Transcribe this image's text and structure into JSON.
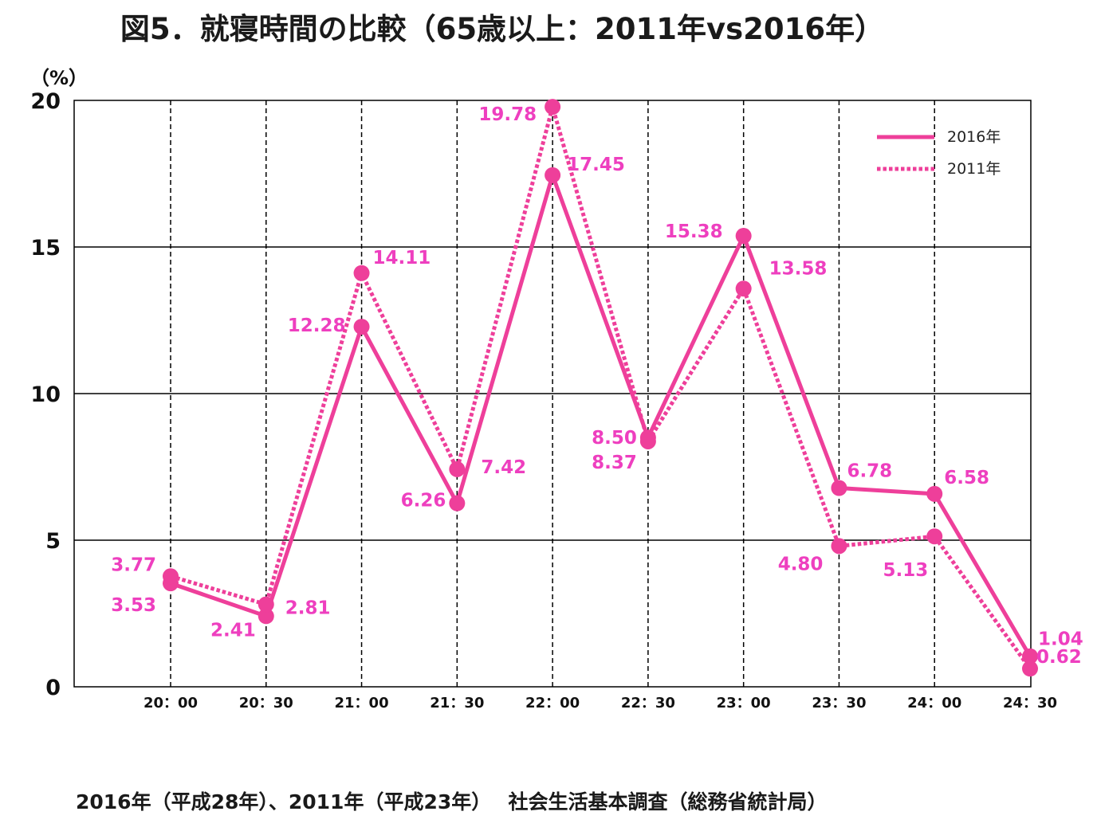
{
  "title": "図5．就寝時間の比較（65歳以上：2011年vs2016年）",
  "source": "2016年（平成28年）、2011年（平成23年）　 社会生活基本調査（総務省統計局）",
  "colors": {
    "line": "#ee3f9a",
    "label": "#ee3fbf",
    "grid": "#000000"
  },
  "chart_data": {
    "type": "line",
    "unit_label": "（%）",
    "ylim": [
      0,
      20
    ],
    "yticks": [
      "0",
      "5",
      "10",
      "15",
      "20"
    ],
    "categories": [
      "20：00",
      "20：30",
      "21：00",
      "21：30",
      "22：00",
      "22：30",
      "23：00",
      "23：30",
      "24：00",
      "24：30"
    ],
    "grid": "horizontal solid, vertical dashed",
    "legend_position": "top-right",
    "series": [
      {
        "name": "2016年",
        "style": "solid",
        "values": [
          3.53,
          2.41,
          12.28,
          6.26,
          17.45,
          8.5,
          15.38,
          6.78,
          6.58,
          1.04
        ],
        "labels": [
          "3.53",
          "2.41",
          "12.28",
          "6.26",
          "17.45",
          "8.50",
          "15.38",
          "6.78",
          "6.58",
          "1.04"
        ]
      },
      {
        "name": "2011年",
        "style": "dotted",
        "values": [
          3.77,
          2.81,
          14.11,
          7.42,
          19.78,
          8.37,
          13.58,
          4.8,
          5.13,
          0.62
        ],
        "labels": [
          "3.77",
          "2.81",
          "14.11",
          "7.42",
          "19.78",
          "8.37",
          "13.58",
          "4.80",
          "5.13",
          "0.62"
        ]
      }
    ]
  }
}
